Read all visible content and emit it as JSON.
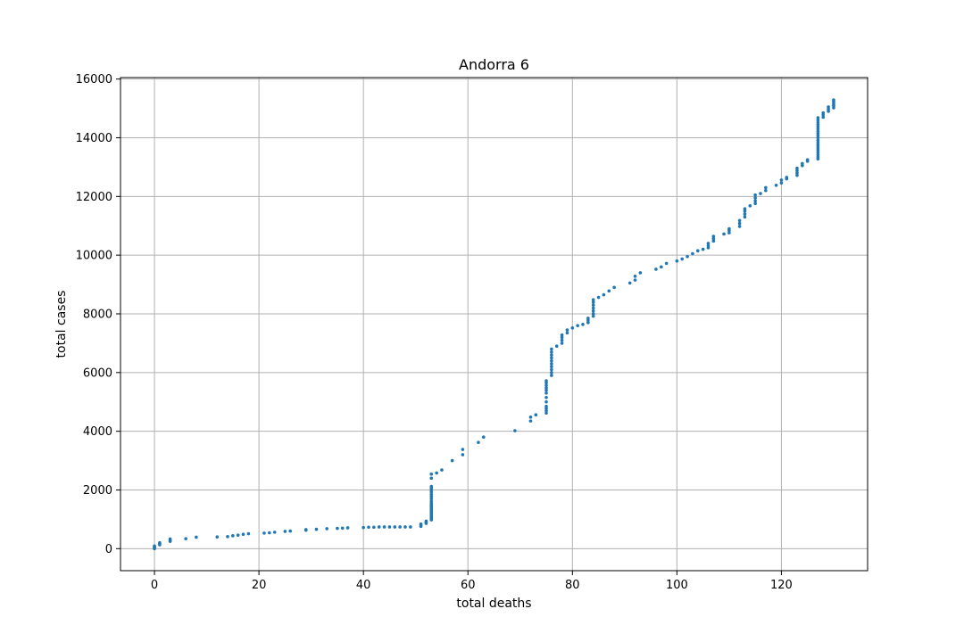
{
  "chart_data": {
    "type": "scatter",
    "title": "Andorra 6",
    "xlabel": "total deaths",
    "ylabel": "total cases",
    "xlim": [
      -6.5,
      136.5
    ],
    "ylim": [
      -750,
      16050
    ],
    "xticks": [
      0,
      20,
      40,
      60,
      80,
      100,
      120
    ],
    "yticks": [
      0,
      2000,
      4000,
      6000,
      8000,
      10000,
      12000,
      14000,
      16000
    ],
    "grid": true,
    "color": "#1f77b4",
    "series": [
      {
        "points": [
          [
            0,
            0
          ],
          [
            0,
            30
          ],
          [
            0,
            60
          ],
          [
            0,
            90
          ],
          [
            1,
            130
          ],
          [
            1,
            170
          ],
          [
            1,
            200
          ],
          [
            3,
            250
          ],
          [
            3,
            290
          ],
          [
            3,
            330
          ],
          [
            6,
            340
          ],
          [
            8,
            390
          ],
          [
            12,
            400
          ],
          [
            14,
            410
          ],
          [
            15,
            440
          ],
          [
            16,
            460
          ],
          [
            17,
            490
          ],
          [
            18,
            510
          ],
          [
            21,
            530
          ],
          [
            22,
            540
          ],
          [
            23,
            560
          ],
          [
            25,
            590
          ],
          [
            26,
            600
          ],
          [
            29,
            630
          ],
          [
            29,
            650
          ],
          [
            31,
            660
          ],
          [
            33,
            680
          ],
          [
            35,
            690
          ],
          [
            36,
            700
          ],
          [
            37,
            710
          ],
          [
            40,
            720
          ],
          [
            41,
            730
          ],
          [
            42,
            730
          ],
          [
            43,
            740
          ],
          [
            44,
            740
          ],
          [
            45,
            740
          ],
          [
            46,
            740
          ],
          [
            47,
            740
          ],
          [
            48,
            740
          ],
          [
            49,
            740
          ],
          [
            51,
            760
          ],
          [
            51,
            800
          ],
          [
            51,
            840
          ],
          [
            52,
            860
          ],
          [
            52,
            900
          ],
          [
            52,
            940
          ],
          [
            53,
            980
          ],
          [
            53,
            1020
          ],
          [
            53,
            1060
          ],
          [
            53,
            1100
          ],
          [
            53,
            1150
          ],
          [
            53,
            1200
          ],
          [
            53,
            1250
          ],
          [
            53,
            1300
          ],
          [
            53,
            1350
          ],
          [
            53,
            1400
          ],
          [
            53,
            1450
          ],
          [
            53,
            1500
          ],
          [
            53,
            1550
          ],
          [
            53,
            1620
          ],
          [
            53,
            1700
          ],
          [
            53,
            1780
          ],
          [
            53,
            1850
          ],
          [
            53,
            1930
          ],
          [
            53,
            2000
          ],
          [
            53,
            2060
          ],
          [
            53,
            2120
          ],
          [
            53,
            2400
          ],
          [
            53,
            2540
          ],
          [
            54,
            2580
          ],
          [
            55,
            2680
          ],
          [
            57,
            3000
          ],
          [
            59,
            3200
          ],
          [
            59,
            3380
          ],
          [
            62,
            3620
          ],
          [
            63,
            3800
          ],
          [
            69,
            4020
          ],
          [
            72,
            4350
          ],
          [
            72,
            4480
          ],
          [
            73,
            4560
          ],
          [
            75,
            4620
          ],
          [
            75,
            4700
          ],
          [
            75,
            4780
          ],
          [
            75,
            4850
          ],
          [
            75,
            5000
          ],
          [
            75,
            5150
          ],
          [
            75,
            5300
          ],
          [
            75,
            5400
          ],
          [
            75,
            5480
          ],
          [
            75,
            5560
          ],
          [
            75,
            5650
          ],
          [
            75,
            5720
          ],
          [
            76,
            5900
          ],
          [
            76,
            6000
          ],
          [
            76,
            6100
          ],
          [
            76,
            6200
          ],
          [
            76,
            6300
          ],
          [
            76,
            6400
          ],
          [
            76,
            6500
          ],
          [
            76,
            6600
          ],
          [
            76,
            6700
          ],
          [
            76,
            6800
          ],
          [
            77,
            6900
          ],
          [
            78,
            7000
          ],
          [
            78,
            7100
          ],
          [
            78,
            7200
          ],
          [
            78,
            7280
          ],
          [
            79,
            7350
          ],
          [
            79,
            7450
          ],
          [
            80,
            7520
          ],
          [
            81,
            7600
          ],
          [
            82,
            7640
          ],
          [
            83,
            7700
          ],
          [
            83,
            7780
          ],
          [
            83,
            7850
          ],
          [
            84,
            7920
          ],
          [
            84,
            8000
          ],
          [
            84,
            8100
          ],
          [
            84,
            8200
          ],
          [
            84,
            8300
          ],
          [
            84,
            8400
          ],
          [
            84,
            8480
          ],
          [
            85,
            8560
          ],
          [
            86,
            8650
          ],
          [
            87,
            8780
          ],
          [
            88,
            8900
          ],
          [
            91,
            9050
          ],
          [
            92,
            9150
          ],
          [
            92,
            9280
          ],
          [
            93,
            9400
          ],
          [
            96,
            9520
          ],
          [
            97,
            9600
          ],
          [
            98,
            9720
          ],
          [
            100,
            9800
          ],
          [
            101,
            9870
          ],
          [
            102,
            9950
          ],
          [
            103,
            10050
          ],
          [
            104,
            10150
          ],
          [
            105,
            10200
          ],
          [
            106,
            10250
          ],
          [
            106,
            10320
          ],
          [
            106,
            10400
          ],
          [
            107,
            10480
          ],
          [
            107,
            10560
          ],
          [
            107,
            10640
          ],
          [
            109,
            10720
          ],
          [
            110,
            10760
          ],
          [
            110,
            10840
          ],
          [
            110,
            10900
          ],
          [
            112,
            10980
          ],
          [
            112,
            11080
          ],
          [
            112,
            11180
          ],
          [
            113,
            11300
          ],
          [
            113,
            11400
          ],
          [
            113,
            11500
          ],
          [
            113,
            11580
          ],
          [
            114,
            11680
          ],
          [
            115,
            11760
          ],
          [
            115,
            11850
          ],
          [
            115,
            11950
          ],
          [
            115,
            12050
          ],
          [
            116,
            12100
          ],
          [
            117,
            12200
          ],
          [
            117,
            12300
          ],
          [
            119,
            12380
          ],
          [
            120,
            12460
          ],
          [
            120,
            12560
          ],
          [
            121,
            12600
          ],
          [
            121,
            12650
          ],
          [
            123,
            12720
          ],
          [
            123,
            12800
          ],
          [
            123,
            12880
          ],
          [
            123,
            12960
          ],
          [
            124,
            13050
          ],
          [
            124,
            13120
          ],
          [
            125,
            13200
          ],
          [
            125,
            13250
          ],
          [
            127,
            13280
          ],
          [
            127,
            13350
          ],
          [
            127,
            13420
          ],
          [
            127,
            13500
          ],
          [
            127,
            13580
          ],
          [
            127,
            13650
          ],
          [
            127,
            13720
          ],
          [
            127,
            13780
          ],
          [
            127,
            13850
          ],
          [
            127,
            13920
          ],
          [
            127,
            14000
          ],
          [
            127,
            14080
          ],
          [
            127,
            14150
          ],
          [
            127,
            14220
          ],
          [
            127,
            14300
          ],
          [
            127,
            14380
          ],
          [
            127,
            14450
          ],
          [
            127,
            14520
          ],
          [
            127,
            14600
          ],
          [
            127,
            14680
          ],
          [
            128,
            14700
          ],
          [
            128,
            14780
          ],
          [
            128,
            14850
          ],
          [
            129,
            14900
          ],
          [
            129,
            14980
          ],
          [
            129,
            15050
          ],
          [
            130,
            15020
          ],
          [
            130,
            15080
          ],
          [
            130,
            15120
          ],
          [
            130,
            15180
          ],
          [
            130,
            15240
          ],
          [
            130,
            15290
          ]
        ]
      }
    ]
  }
}
